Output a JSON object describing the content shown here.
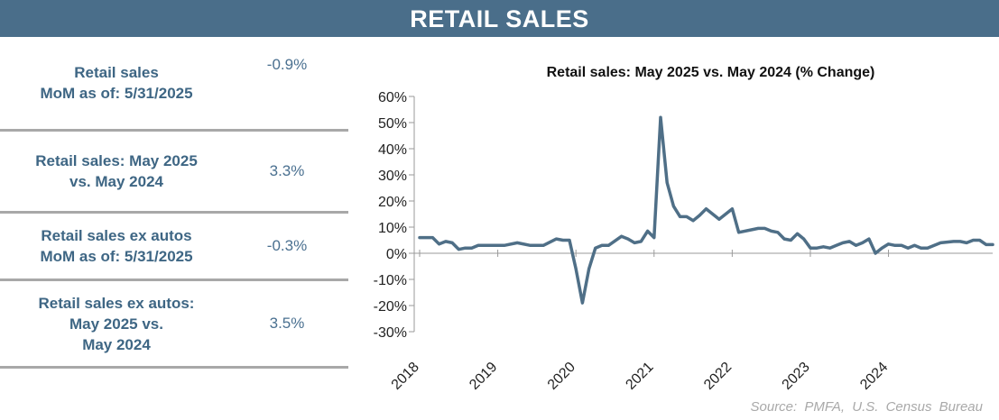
{
  "header": {
    "title": "RETAIL SALES"
  },
  "stats": [
    {
      "label_lines": [
        "Retail sales",
        "MoM as of: 5/31/2025"
      ],
      "value": "-0.9%"
    },
    {
      "label_lines": [
        "Retail sales: May 2025",
        "vs. May 2024"
      ],
      "value": "3.3%"
    },
    {
      "label_lines": [
        "Retail sales ex autos",
        "MoM as of: 5/31/2025"
      ],
      "value": "-0.3%"
    },
    {
      "label_lines": [
        "Retail sales ex autos:",
        "May 2025 vs.",
        "May 2024"
      ],
      "value": "3.5%"
    }
  ],
  "colors": {
    "banner": "#4a6e8a",
    "line": "#4f6f87",
    "label": "#3e6684"
  },
  "chart_data": {
    "type": "line",
    "title": "Retail sales: May 2025 vs. May 2024 (% Change)",
    "ylim": [
      -30,
      60
    ],
    "y_ticks": [
      -30,
      -20,
      -10,
      0,
      10,
      20,
      30,
      40,
      50,
      60
    ],
    "y_tick_labels": [
      "-30%",
      "-20%",
      "-10%",
      "0%",
      "10%",
      "20%",
      "30%",
      "40%",
      "50%",
      "60%"
    ],
    "x_ticks": [
      "2018",
      "2019",
      "2020",
      "2021",
      "2022",
      "2023",
      "2024"
    ],
    "xlim": [
      "2018-01",
      "2025-05"
    ],
    "grid": false,
    "series": [
      {
        "x": [
          "2018-01",
          "2018-03",
          "2018-04",
          "2018-05",
          "2018-06",
          "2018-07",
          "2018-08",
          "2018-09",
          "2018-10",
          "2018-11",
          "2018-12",
          "2019-02",
          "2019-04",
          "2019-06",
          "2019-08",
          "2019-10",
          "2019-11",
          "2019-12",
          "2020-01",
          "2020-02",
          "2020-03",
          "2020-04",
          "2020-05",
          "2020-06",
          "2020-08",
          "2020-09",
          "2020-10",
          "2020-11",
          "2020-12",
          "2021-01",
          "2021-02",
          "2021-03",
          "2021-04",
          "2021-05",
          "2021-06",
          "2021-07",
          "2021-08",
          "2021-09",
          "2021-10",
          "2021-11",
          "2022-01",
          "2022-02",
          "2022-04",
          "2022-05",
          "2022-06",
          "2022-07",
          "2022-08",
          "2022-09",
          "2022-10",
          "2022-11",
          "2022-12",
          "2023-01",
          "2023-02",
          "2023-03",
          "2023-04",
          "2023-05",
          "2023-06",
          "2023-07",
          "2023-08",
          "2023-09",
          "2023-10",
          "2023-11",
          "2023-12",
          "2024-01",
          "2024-02",
          "2024-03",
          "2024-04",
          "2024-05",
          "2024-06",
          "2024-07",
          "2024-09",
          "2024-11",
          "2024-12",
          "2025-01",
          "2025-02",
          "2025-03",
          "2025-04",
          "2025-05"
        ],
        "values": [
          6,
          6,
          3.5,
          4.5,
          4,
          1.5,
          2,
          2,
          3,
          3,
          3,
          3,
          4,
          3,
          3,
          5.5,
          5,
          5,
          -6,
          -19,
          -6,
          2,
          3,
          3,
          6.5,
          5.5,
          4,
          4.5,
          8.5,
          6,
          52,
          27,
          18,
          14,
          14,
          12.5,
          14.5,
          17,
          15,
          13,
          17,
          8,
          9,
          9.5,
          9.5,
          8.5,
          8,
          5.5,
          5,
          7.5,
          5.5,
          2,
          2,
          2.5,
          2,
          3,
          4,
          4.5,
          3,
          4,
          5.5,
          0,
          2,
          3.5,
          3,
          3,
          2,
          3,
          2,
          2,
          4,
          4.5,
          4.5,
          4,
          5,
          5,
          3.3,
          3.3
        ]
      }
    ]
  },
  "source": "Source: PMFA, U.S. Census Bureau"
}
